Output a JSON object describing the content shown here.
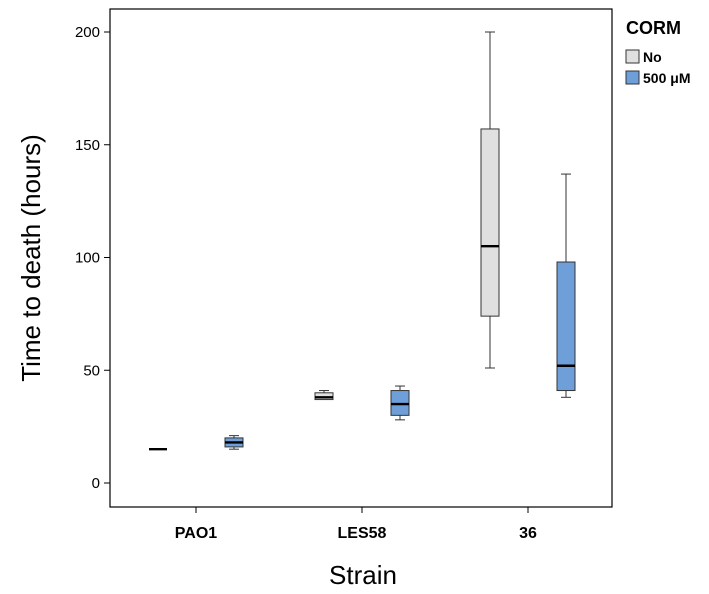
{
  "chart_data": {
    "type": "boxplot",
    "xlabel": "Strain",
    "ylabel": "Time to death (hours)",
    "ylim": [
      -10,
      210
    ],
    "yticks": [
      0,
      50,
      100,
      150,
      200
    ],
    "categories": [
      "PAO1",
      "LES58",
      "36"
    ],
    "legend": {
      "title": "CORM",
      "placement": "right-top",
      "entries": [
        {
          "label": "No",
          "color": "#e0e0e0"
        },
        {
          "label": "500 μM",
          "color": "#6f9fd8"
        }
      ]
    },
    "series": [
      {
        "name": "No",
        "color": "#e0e0e0",
        "boxes": [
          {
            "category": "PAO1",
            "min": 15,
            "q1": 15,
            "median": 15,
            "q3": 15,
            "max": 15
          },
          {
            "category": "LES58",
            "min": 37,
            "q1": 37,
            "median": 38,
            "q3": 40,
            "max": 41
          },
          {
            "category": "36",
            "min": 51,
            "q1": 74,
            "median": 105,
            "q3": 157,
            "max": 200
          }
        ]
      },
      {
        "name": "500 μM",
        "color": "#6f9fd8",
        "boxes": [
          {
            "category": "PAO1",
            "min": 15,
            "q1": 16,
            "median": 18,
            "q3": 20,
            "max": 21
          },
          {
            "category": "LES58",
            "min": 28,
            "q1": 30,
            "median": 35,
            "q3": 41,
            "max": 43
          },
          {
            "category": "36",
            "min": 38,
            "q1": 41,
            "median": 52,
            "q3": 98,
            "max": 137
          }
        ]
      }
    ]
  }
}
